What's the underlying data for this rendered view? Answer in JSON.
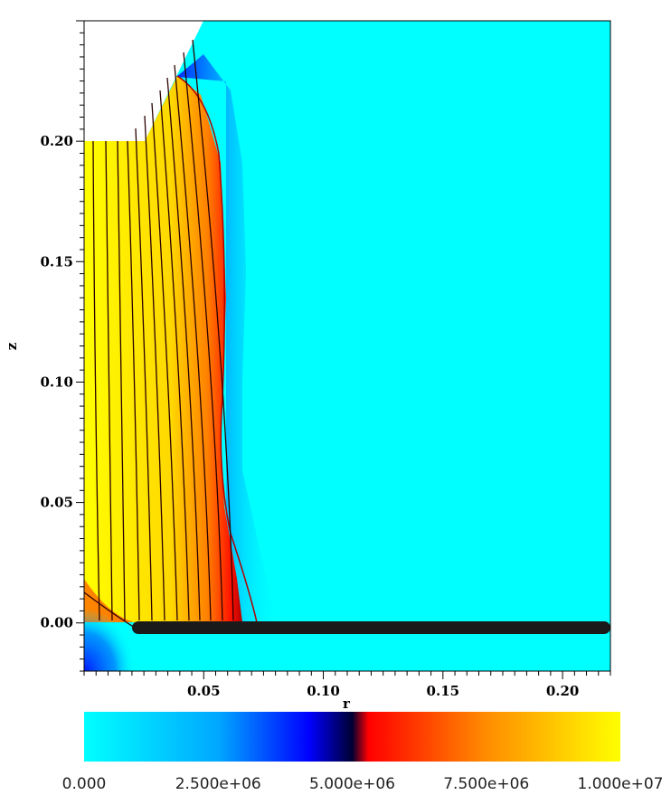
{
  "chart_data": {
    "type": "heatmap",
    "title": "",
    "xlabel": "r",
    "ylabel": "z",
    "xlim": [
      0.0,
      0.22
    ],
    "ylim": [
      -0.02,
      0.25
    ],
    "x_ticks": [
      {
        "value": 0.05,
        "label": "0.05"
      },
      {
        "value": 0.1,
        "label": "0.10"
      },
      {
        "value": 0.15,
        "label": "0.15"
      },
      {
        "value": 0.2,
        "label": "0.20"
      }
    ],
    "y_ticks": [
      {
        "value": 0.0,
        "label": "0.00"
      },
      {
        "value": 0.05,
        "label": "0.05"
      },
      {
        "value": 0.1,
        "label": "0.10"
      },
      {
        "value": 0.15,
        "label": "0.15"
      },
      {
        "value": 0.2,
        "label": "0.20"
      }
    ],
    "colorbar": {
      "range": [
        0,
        10000000
      ],
      "ticks": [
        {
          "value": 0,
          "label": "0.000"
        },
        {
          "value": 2500000,
          "label": "2.500e+06"
        },
        {
          "value": 5000000,
          "label": "5.000e+06"
        },
        {
          "value": 7500000,
          "label": "7.500e+06"
        },
        {
          "value": 10000000,
          "label": "1.000e+07"
        }
      ],
      "colors": [
        "#00ffff",
        "#0000ff",
        "#000033",
        "#ff0000",
        "#ffff00"
      ]
    },
    "jet_boundary": [
      [
        0,
        0.233
      ],
      [
        0.04,
        0.225
      ],
      [
        0.05,
        0.2
      ],
      [
        0.058,
        0.15
      ],
      [
        0.058,
        0.1
      ],
      [
        0.055,
        0.065
      ],
      [
        0.06,
        0.03
      ],
      [
        0.067,
        0.005
      ],
      [
        0.07,
        0.0
      ]
    ],
    "wall_region": {
      "polygon": [
        [
          0,
          0.25
        ],
        [
          0.05,
          0.25
        ],
        [
          0.025,
          0.2
        ],
        [
          0,
          0.2
        ]
      ]
    },
    "solid_strip": {
      "r_range": [
        0.02,
        0.22
      ],
      "z_range": [
        -0.005,
        0.0
      ]
    }
  }
}
